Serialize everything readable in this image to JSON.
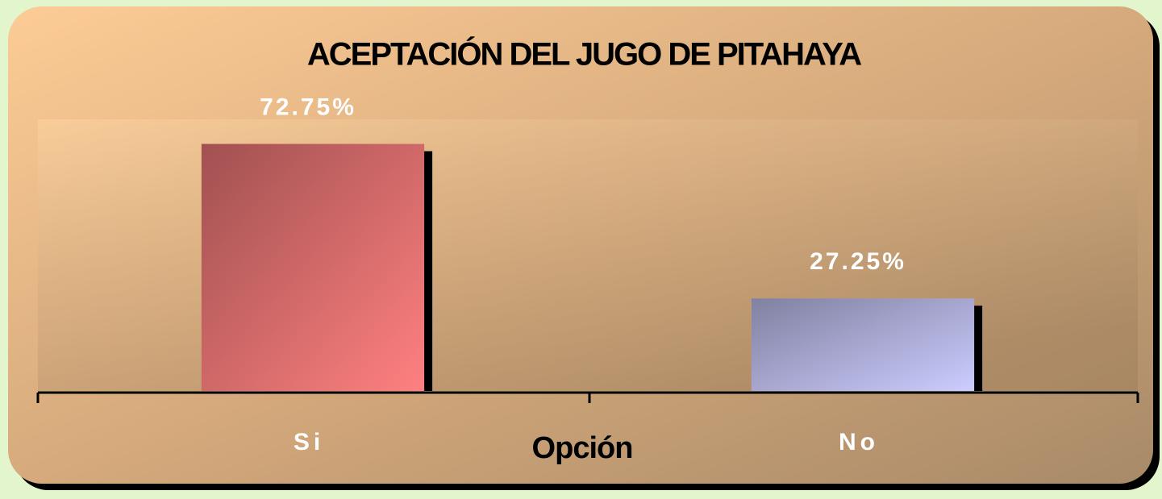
{
  "chart_data": {
    "type": "bar",
    "title": "ACEPTACIÓN DEL JUGO DE PITAHAYA",
    "x_label": "Opción",
    "categories": [
      "Si",
      "No"
    ],
    "values": [
      72.75,
      27.25
    ],
    "value_labels": [
      "72.75%",
      "27.25%"
    ],
    "colors": [
      "#ff8080",
      "#ccccff"
    ],
    "ylim": [
      0,
      80
    ]
  }
}
